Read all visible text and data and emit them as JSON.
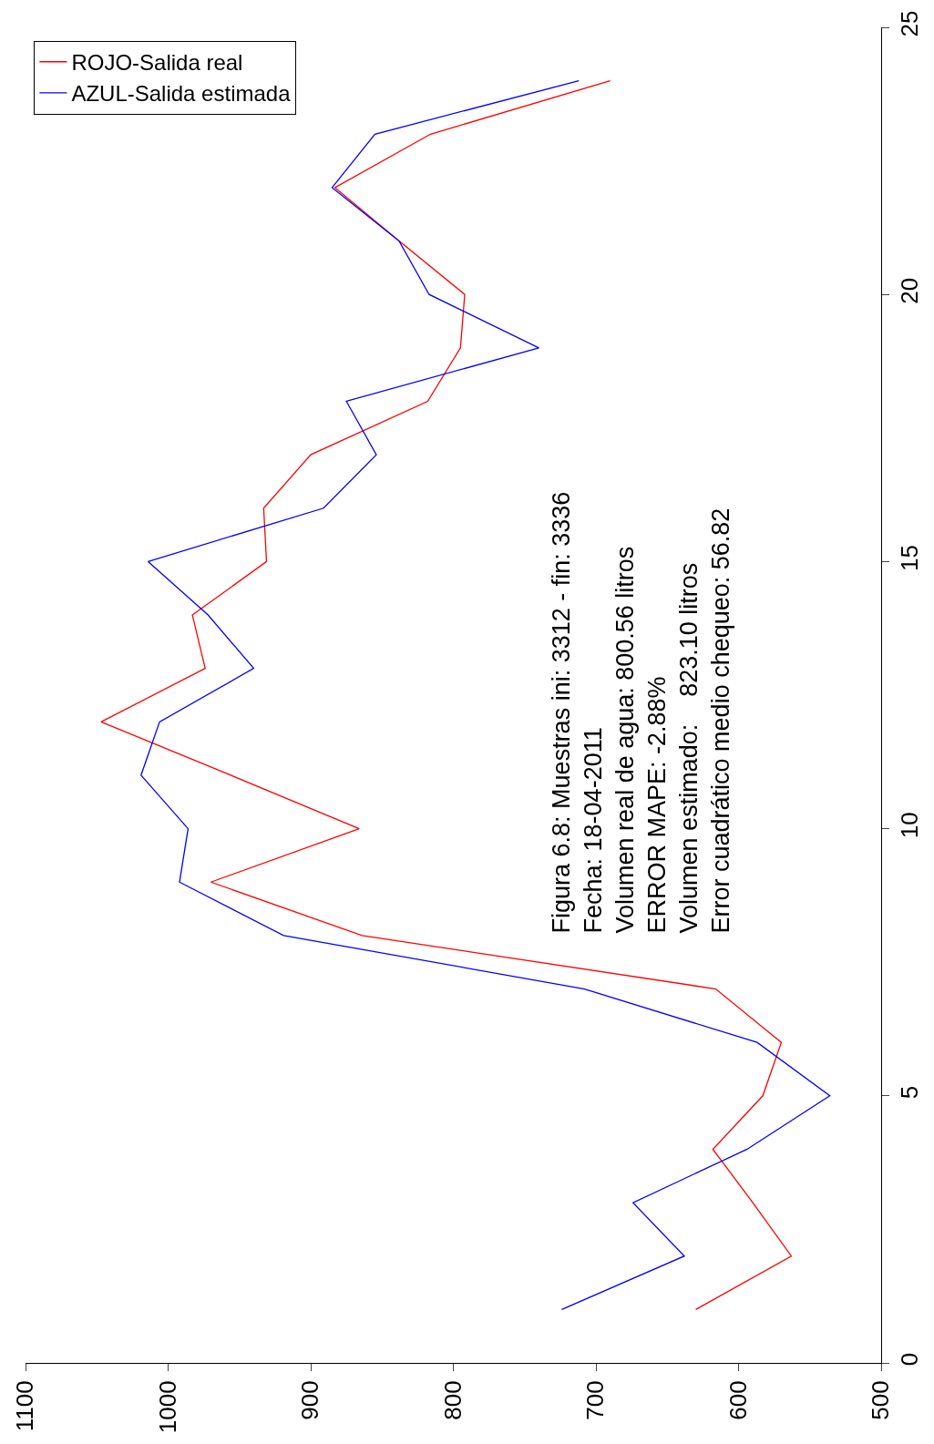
{
  "chart_data": {
    "type": "line",
    "series": [
      {
        "name": "ROJO-Salida real",
        "color": "#ff0000",
        "x": [
          630,
          563,
          590,
          618,
          583,
          570,
          616,
          864,
          970,
          866,
          956,
          1047,
          974,
          983,
          931,
          933,
          900,
          818,
          795,
          792,
          838,
          883,
          816,
          690
        ],
        "values": [
          1,
          2,
          3,
          4,
          5,
          6,
          7,
          8,
          9,
          10,
          11,
          12,
          13,
          14,
          15,
          16,
          17,
          18,
          19,
          20,
          21,
          22,
          23,
          24
        ]
      },
      {
        "name": "AZUL-Salida estimada",
        "color": "#0000ff",
        "x": [
          724,
          638,
          674,
          594,
          536,
          587,
          708,
          919,
          992,
          986,
          1019,
          1006,
          940,
          972,
          1014,
          891,
          854,
          875,
          740,
          817,
          838,
          885,
          855,
          712
        ],
        "values": [
          1,
          2,
          3,
          4,
          5,
          6,
          7,
          8,
          9,
          10,
          11,
          12,
          13,
          14,
          15,
          16,
          17,
          18,
          19,
          20,
          21,
          22,
          23,
          24
        ]
      }
    ],
    "xlim": [
      1100,
      500
    ],
    "xticks": [
      500,
      600,
      700,
      800,
      900,
      1000,
      1100
    ],
    "ylim": [
      0,
      25
    ],
    "yticks": [
      0,
      5,
      10,
      15,
      20,
      25
    ],
    "annotations": [
      "Figura 6.8: Muestras ini: 3312 - fin: 3336",
      "Fecha: 18-04-2011",
      "Volumen real de agua: 800.56 litros",
      "ERROR MAPE: -2.88%",
      "Volumen estimado:    823.10 litros",
      "Error cuadrático medio chequeo: 56.82"
    ],
    "legend": "top left",
    "marker": "none",
    "line_style": "solid"
  }
}
